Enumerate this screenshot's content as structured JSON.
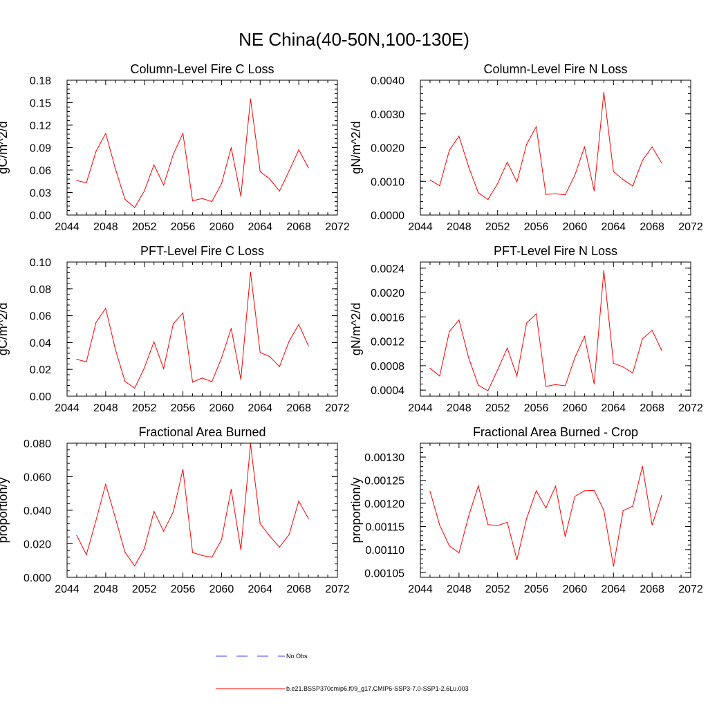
{
  "figure_title": "NE China(40-50N,100-130E)",
  "colors": {
    "model": "#ff0000",
    "obs": "#3b3bff",
    "axis": "#000000"
  },
  "legend": {
    "obs_label": "No Obs",
    "model_label": "b.e21.BSSP370cmip6.f09_g17.CMIP6-SSP3-7.0-SSP1-2.6Lu.003"
  },
  "chart_data": [
    {
      "type": "line",
      "title": "Column-Level Fire C Loss",
      "ylabel": "gC/m^2/d",
      "xlim": [
        2044,
        2072
      ],
      "ylim": [
        0,
        0.18
      ],
      "x_ticks": [
        "2044",
        "2048",
        "2052",
        "2056",
        "2060",
        "2064",
        "2068",
        "2072"
      ],
      "y_ticks": [
        "0.00",
        "0.03",
        "0.06",
        "0.09",
        "0.12",
        "0.15",
        "0.18"
      ],
      "y_tick_values": [
        0,
        0.03,
        0.06,
        0.09,
        0.12,
        0.15,
        0.18
      ],
      "y_minor_step": 0.006,
      "x": [
        2045,
        2046,
        2047,
        2048,
        2049,
        2050,
        2051,
        2052,
        2053,
        2054,
        2055,
        2056,
        2057,
        2058,
        2059,
        2060,
        2061,
        2062,
        2063,
        2064,
        2065,
        2066,
        2067,
        2068,
        2069
      ],
      "series": [
        {
          "values": [
            0.046,
            0.043,
            0.085,
            0.109,
            0.062,
            0.021,
            0.01,
            0.032,
            0.067,
            0.04,
            0.081,
            0.109,
            0.019,
            0.022,
            0.018,
            0.042,
            0.09,
            0.025,
            0.155,
            0.058,
            0.048,
            0.032,
            0.059,
            0.087,
            0.063
          ]
        }
      ]
    },
    {
      "type": "line",
      "title": "Column-Level Fire N Loss",
      "ylabel": "gN/m^2/d",
      "xlim": [
        2044,
        2072
      ],
      "ylim": [
        0,
        0.004
      ],
      "x_ticks": [
        "2044",
        "2048",
        "2052",
        "2056",
        "2060",
        "2064",
        "2068",
        "2072"
      ],
      "y_ticks": [
        "0.0000",
        "0.0010",
        "0.0020",
        "0.0030",
        "0.0040"
      ],
      "y_tick_values": [
        0,
        0.001,
        0.002,
        0.003,
        0.004
      ],
      "y_minor_step": 0.0002,
      "x": [
        2045,
        2046,
        2047,
        2048,
        2049,
        2050,
        2051,
        2052,
        2053,
        2054,
        2055,
        2056,
        2057,
        2058,
        2059,
        2060,
        2061,
        2062,
        2063,
        2064,
        2065,
        2066,
        2067,
        2068,
        2069
      ],
      "series": [
        {
          "values": [
            0.00104,
            0.00087,
            0.00192,
            0.00234,
            0.00143,
            0.00066,
            0.00046,
            0.00093,
            0.00157,
            0.00098,
            0.0021,
            0.00262,
            0.00061,
            0.00063,
            0.0006,
            0.00118,
            0.00202,
            0.00072,
            0.00364,
            0.00129,
            0.00105,
            0.00086,
            0.00162,
            0.00202,
            0.00154
          ]
        }
      ]
    },
    {
      "type": "line",
      "title": "PFT-Level Fire C Loss",
      "ylabel": "gC/m^2/d",
      "xlim": [
        2044,
        2072
      ],
      "ylim": [
        0,
        0.1
      ],
      "x_ticks": [
        "2044",
        "2048",
        "2052",
        "2056",
        "2060",
        "2064",
        "2068",
        "2072"
      ],
      "y_ticks": [
        "0.00",
        "0.02",
        "0.04",
        "0.06",
        "0.08",
        "0.10"
      ],
      "y_tick_values": [
        0,
        0.02,
        0.04,
        0.06,
        0.08,
        0.1
      ],
      "y_minor_step": 0.004,
      "x": [
        2045,
        2046,
        2047,
        2048,
        2049,
        2050,
        2051,
        2052,
        2053,
        2054,
        2055,
        2056,
        2057,
        2058,
        2059,
        2060,
        2061,
        2062,
        2063,
        2064,
        2065,
        2066,
        2067,
        2068,
        2069
      ],
      "series": [
        {
          "values": [
            0.0275,
            0.0255,
            0.055,
            0.0655,
            0.035,
            0.011,
            0.006,
            0.021,
            0.0405,
            0.0205,
            0.054,
            0.062,
            0.0105,
            0.0135,
            0.0108,
            0.0285,
            0.0505,
            0.0125,
            0.0925,
            0.0325,
            0.0295,
            0.022,
            0.041,
            0.0535,
            0.0375
          ]
        }
      ]
    },
    {
      "type": "line",
      "title": "PFT-Level Fire N Loss",
      "ylabel": "gN/m^2/d",
      "xlim": [
        2044,
        2072
      ],
      "ylim": [
        0.0003,
        0.0025
      ],
      "x_ticks": [
        "2044",
        "2048",
        "2052",
        "2056",
        "2060",
        "2064",
        "2068",
        "2072"
      ],
      "y_ticks": [
        "0.0004",
        "0.0008",
        "0.0012",
        "0.0016",
        "0.0020",
        "0.0024"
      ],
      "y_tick_values": [
        0.0004,
        0.0008,
        0.0012,
        0.0016,
        0.002,
        0.0024
      ],
      "y_minor_step": 0.0001,
      "x": [
        2045,
        2046,
        2047,
        2048,
        2049,
        2050,
        2051,
        2052,
        2053,
        2054,
        2055,
        2056,
        2057,
        2058,
        2059,
        2060,
        2061,
        2062,
        2063,
        2064,
        2065,
        2066,
        2067,
        2068,
        2069
      ],
      "series": [
        {
          "values": [
            0.00076,
            0.00063,
            0.00136,
            0.00155,
            0.00093,
            0.00048,
            0.00039,
            0.00073,
            0.00109,
            0.00063,
            0.0015,
            0.00165,
            0.00046,
            0.00049,
            0.00047,
            0.00093,
            0.00128,
            0.0005,
            0.00236,
            0.00084,
            0.00078,
            0.00068,
            0.00124,
            0.00138,
            0.00105
          ]
        }
      ]
    },
    {
      "type": "line",
      "title": "Fractional Area Burned",
      "ylabel": "proportion/y",
      "xlim": [
        2044,
        2072
      ],
      "ylim": [
        0,
        0.08
      ],
      "x_ticks": [
        "2044",
        "2048",
        "2052",
        "2056",
        "2060",
        "2064",
        "2068",
        "2072"
      ],
      "y_ticks": [
        "0.000",
        "0.020",
        "0.040",
        "0.060",
        "0.080"
      ],
      "y_tick_values": [
        0,
        0.02,
        0.04,
        0.06,
        0.08
      ],
      "y_minor_step": 0.004,
      "x": [
        2045,
        2046,
        2047,
        2048,
        2049,
        2050,
        2051,
        2052,
        2053,
        2054,
        2055,
        2056,
        2057,
        2058,
        2059,
        2060,
        2061,
        2062,
        2063,
        2064,
        2065,
        2066,
        2067,
        2068,
        2069
      ],
      "series": [
        {
          "values": [
            0.025,
            0.0135,
            0.034,
            0.0555,
            0.0355,
            0.015,
            0.0068,
            0.017,
            0.0393,
            0.0275,
            0.039,
            0.0645,
            0.0148,
            0.013,
            0.012,
            0.0225,
            0.0525,
            0.0165,
            0.0795,
            0.032,
            0.0245,
            0.018,
            0.0255,
            0.0455,
            0.035
          ]
        }
      ]
    },
    {
      "type": "line",
      "title": "Fractional Area Burned - Crop",
      "ylabel": "proportion/y",
      "xlim": [
        2044,
        2072
      ],
      "ylim": [
        0.00104,
        0.00133
      ],
      "x_ticks": [
        "2044",
        "2048",
        "2052",
        "2056",
        "2060",
        "2064",
        "2068",
        "2072"
      ],
      "y_ticks": [
        "0.00105",
        "0.00110",
        "0.00115",
        "0.00120",
        "0.00125",
        "0.00130"
      ],
      "y_tick_values": [
        0.00105,
        0.0011,
        0.00115,
        0.0012,
        0.00125,
        0.0013
      ],
      "y_minor_step": 1e-05,
      "x": [
        2045,
        2046,
        2047,
        2048,
        2049,
        2050,
        2051,
        2052,
        2053,
        2054,
        2055,
        2056,
        2057,
        2058,
        2059,
        2060,
        2061,
        2062,
        2063,
        2064,
        2065,
        2066,
        2067,
        2068,
        2069
      ],
      "series": [
        {
          "values": [
            0.001226,
            0.001153,
            0.001108,
            0.001093,
            0.001172,
            0.001238,
            0.001154,
            0.001152,
            0.001159,
            0.001078,
            0.001167,
            0.001227,
            0.00119,
            0.001237,
            0.001128,
            0.001215,
            0.001227,
            0.001228,
            0.001185,
            0.001064,
            0.001184,
            0.001194,
            0.00128,
            0.001153,
            0.001217
          ]
        }
      ]
    }
  ]
}
